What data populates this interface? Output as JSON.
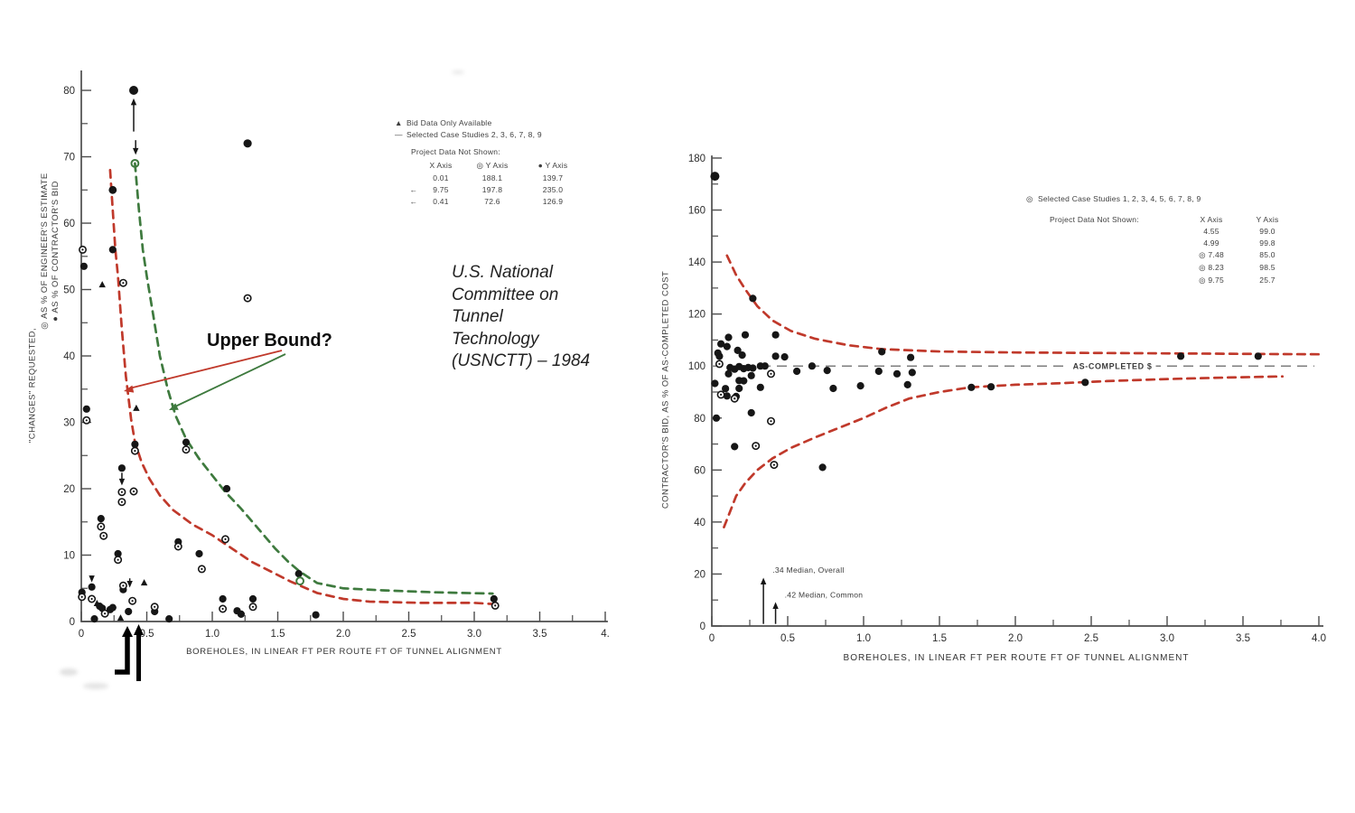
{
  "annotations": {
    "upper_bound_label": "Upper Bound?",
    "usnctt_lines": [
      "U.S. National",
      "Committee on",
      "Tunnel",
      "Technology",
      "(USNCTT) – 1984"
    ]
  },
  "palette": {
    "red": "#c0392b",
    "green": "#3e7a3e",
    "ink": "#161616",
    "gray_line": "#7d7d7d"
  },
  "chart_data": [
    {
      "id": "changes-requested-vs-boreholes",
      "type": "scatter",
      "xlabel": "BOREHOLES, IN LINEAR FT PER ROUTE FT OF TUNNEL ALIGNMENT",
      "ylabel1": "\"CHANGES\" REQUESTED,",
      "ylabel2_marker": "◎",
      "ylabel2": "AS % OF ENGINEER'S ESTIMATE",
      "ylabel3_marker": "●",
      "ylabel3": "AS % OF CONTRACTOR'S BID",
      "xlim": [
        0,
        4.02
      ],
      "ylim": [
        0,
        83
      ],
      "x_ticks": [
        0,
        0.5,
        1.0,
        1.5,
        2.0,
        2.5,
        3.0,
        3.5,
        4.0
      ],
      "x_tick_labels": [
        "0",
        "0.5",
        "1.0",
        "1.5",
        "2.0",
        "2.5",
        "3.0",
        "3.5",
        "4."
      ],
      "y_ticks": [
        0,
        10,
        20,
        30,
        40,
        50,
        60,
        70,
        80
      ],
      "y_tick_labels": [
        "0",
        "10",
        "20",
        "30",
        "40",
        "50",
        "60",
        "70",
        "80"
      ],
      "x_minor_step": 0.25,
      "y_minor_step": 5,
      "series": {
        "filled": [
          [
            0.4,
            80,
            5
          ],
          [
            1.27,
            72,
            4.6
          ],
          [
            0.24,
            65,
            4.4
          ],
          [
            0.24,
            56
          ],
          [
            0.02,
            53.5
          ],
          [
            0.04,
            32
          ],
          [
            0.41,
            26.7
          ],
          [
            0.8,
            27
          ],
          [
            0.31,
            23.1
          ],
          [
            1.11,
            20
          ],
          [
            0.15,
            15.5
          ],
          [
            0.28,
            10.2
          ],
          [
            0.74,
            12
          ],
          [
            0.9,
            10.2
          ],
          [
            1.66,
            7.2
          ],
          [
            3.15,
            3.4
          ],
          [
            1.08,
            3.4
          ],
          [
            1.31,
            3.4
          ],
          [
            1.79,
            1.0
          ],
          [
            1.19,
            1.6
          ],
          [
            1.22,
            1.1
          ],
          [
            0.005,
            4.4
          ],
          [
            0.08,
            5.2
          ],
          [
            0.14,
            2.3
          ],
          [
            0.16,
            2.0
          ],
          [
            0.22,
            1.8
          ],
          [
            0.24,
            2.1
          ],
          [
            0.32,
            4.8
          ],
          [
            0.36,
            1.5
          ],
          [
            0.56,
            1.5
          ],
          [
            0.67,
            0.4
          ],
          [
            0.1,
            0.4
          ]
        ],
        "open": [
          [
            0.01,
            56
          ],
          [
            0.32,
            51
          ],
          [
            1.27,
            48.7
          ],
          [
            0.04,
            30.3
          ],
          [
            0.41,
            25.7
          ],
          [
            0.8,
            25.9
          ],
          [
            0.31,
            19.5
          ],
          [
            0.31,
            18.0
          ],
          [
            0.4,
            19.6
          ],
          [
            0.15,
            14.3
          ],
          [
            0.17,
            12.9
          ],
          [
            0.28,
            9.3
          ],
          [
            0.74,
            11.3
          ],
          [
            0.92,
            7.9
          ],
          [
            1.1,
            12.4
          ],
          [
            1.08,
            1.9
          ],
          [
            1.31,
            2.2
          ],
          [
            3.16,
            2.4
          ],
          [
            0.005,
            3.7
          ],
          [
            0.08,
            3.4
          ],
          [
            0.18,
            1.2
          ],
          [
            0.32,
            5.4
          ],
          [
            0.39,
            3.1
          ],
          [
            0.56,
            2.2
          ]
        ],
        "green_open": [
          [
            0.41,
            69
          ],
          [
            1.67,
            6.1
          ]
        ],
        "triangle": [
          [
            0.16,
            50.7
          ],
          [
            0.42,
            32.1
          ],
          [
            0.12,
            2.7
          ],
          [
            0.48,
            5.8
          ],
          [
            0.3,
            0.5
          ]
        ]
      },
      "curves": [
        {
          "name": "upper-bound-red",
          "color": "#c0392b",
          "points": [
            [
              0.22,
              68
            ],
            [
              0.24,
              62
            ],
            [
              0.26,
              56
            ],
            [
              0.28,
              52
            ],
            [
              0.31,
              44
            ],
            [
              0.34,
              37
            ],
            [
              0.38,
              30.5
            ],
            [
              0.41,
              27
            ],
            [
              0.46,
              24
            ],
            [
              0.52,
              21.5
            ],
            [
              0.6,
              19
            ],
            [
              0.7,
              16.8
            ],
            [
              0.85,
              14.6
            ],
            [
              1.0,
              13
            ],
            [
              1.15,
              11
            ],
            [
              1.3,
              9
            ],
            [
              1.45,
              7.5
            ],
            [
              1.6,
              6
            ],
            [
              1.8,
              4.3
            ],
            [
              2.0,
              3.4
            ],
            [
              2.2,
              3.0
            ],
            [
              2.6,
              2.8
            ],
            [
              3.0,
              2.8
            ],
            [
              3.17,
              2.6
            ]
          ]
        },
        {
          "name": "upper-bound-green",
          "color": "#3e7a3e",
          "points": [
            [
              0.41,
              69
            ],
            [
              0.44,
              62
            ],
            [
              0.47,
              56
            ],
            [
              0.5,
              52
            ],
            [
              0.55,
              46
            ],
            [
              0.6,
              40
            ],
            [
              0.66,
              35
            ],
            [
              0.72,
              31
            ],
            [
              0.8,
              27.5
            ],
            [
              0.9,
              24.5
            ],
            [
              1.0,
              22
            ],
            [
              1.1,
              19.5
            ],
            [
              1.22,
              17
            ],
            [
              1.35,
              14
            ],
            [
              1.48,
              11
            ],
            [
              1.58,
              9
            ],
            [
              1.67,
              7.5
            ],
            [
              1.8,
              5.8
            ],
            [
              2.0,
              5.0
            ],
            [
              2.3,
              4.7
            ],
            [
              2.7,
              4.4
            ],
            [
              3.14,
              4.2
            ]
          ]
        }
      ],
      "arrows": [
        {
          "x": 0.4,
          "y1": 73.8,
          "y2": 78.8
        },
        {
          "x": 0.415,
          "y1": 72.5,
          "y2": 70.3
        },
        {
          "x": 0.31,
          "y1": 22.4,
          "y2": 20.5
        },
        {
          "x": 0.08,
          "y1": 6.9,
          "y2": 5.9
        },
        {
          "x": 0.37,
          "y1": 6.5,
          "y2": 5.1
        }
      ],
      "legend": {
        "line1_marker": "▲",
        "line1": "Bid Data Only Available",
        "line2_marker": "—",
        "line2": "Selected Case Studies 2, 3, 6, 7, 8, 9",
        "subtitle": "Project Data Not Shown:",
        "header": {
          "x": "X Axis",
          "y1_marker": "◎",
          "y1": "Y Axis",
          "y2_marker": "●",
          "y2": "Y Axis"
        },
        "rows": [
          {
            "pre": "",
            "x": "0.01",
            "y1": "188.1",
            "y2": "139.7"
          },
          {
            "pre": "←",
            "x": "9.75",
            "y1": "197.8",
            "y2": "235.0"
          },
          {
            "pre": "←",
            "x": "0.41",
            "y1": "72.6",
            "y2": "126.9"
          }
        ]
      }
    },
    {
      "id": "contractors-bid-vs-boreholes",
      "type": "scatter",
      "xlabel": "BOREHOLES, IN LINEAR FT PER ROUTE FT OF TUNNEL ALIGNMENT",
      "ylabel": "CONTRACTOR'S BID, AS % OF AS-COMPLETED COST",
      "xlim": [
        0,
        4.03
      ],
      "ylim": [
        0,
        181
      ],
      "x_ticks": [
        0,
        0.5,
        1.0,
        1.5,
        2.0,
        2.5,
        3.0,
        3.5,
        4.0
      ],
      "x_tick_labels": [
        "0",
        "0.5",
        "1.0",
        "1.5",
        "2.0",
        "2.5",
        "3.0",
        "3.5",
        "4.0"
      ],
      "y_ticks": [
        0,
        20,
        40,
        60,
        80,
        100,
        120,
        140,
        160,
        180
      ],
      "y_tick_labels": [
        "0",
        "20",
        "40",
        "60",
        "80",
        "100",
        "120",
        "140",
        "160",
        "180"
      ],
      "x_minor_step": 0.25,
      "y_minor_step": 10,
      "as_completed": {
        "y": 100,
        "x_end": 3.97,
        "label_x": 2.64,
        "label": "AS-COMPLETED $"
      },
      "series": {
        "filled": [
          [
            0.02,
            173,
            5
          ],
          [
            0.27,
            126
          ],
          [
            0.11,
            111
          ],
          [
            0.22,
            112
          ],
          [
            0.42,
            112
          ],
          [
            0.06,
            108.5
          ],
          [
            0.1,
            107.5
          ],
          [
            0.04,
            105
          ],
          [
            0.05,
            103.8
          ],
          [
            0.17,
            106
          ],
          [
            0.2,
            104.2
          ],
          [
            0.42,
            103.8
          ],
          [
            0.48,
            103.5
          ],
          [
            1.12,
            105.5
          ],
          [
            1.31,
            103.3
          ],
          [
            0.12,
            99.4
          ],
          [
            0.15,
            98.8
          ],
          [
            0.18,
            99.8
          ],
          [
            0.21,
            99.0
          ],
          [
            0.24,
            99.4
          ],
          [
            0.27,
            99.2
          ],
          [
            0.32,
            100.0
          ],
          [
            0.35,
            100.0
          ],
          [
            0.11,
            97.0
          ],
          [
            0.26,
            96.3
          ],
          [
            0.56,
            98.0
          ],
          [
            0.66,
            100.0
          ],
          [
            0.76,
            98.3
          ],
          [
            1.1,
            98.0
          ],
          [
            1.22,
            97.0
          ],
          [
            1.32,
            97.5
          ],
          [
            0.02,
            93.3
          ],
          [
            0.09,
            91.3
          ],
          [
            0.18,
            94.4
          ],
          [
            0.21,
            94.3
          ],
          [
            0.18,
            91.4
          ],
          [
            0.32,
            91.8
          ],
          [
            0.8,
            91.4
          ],
          [
            0.98,
            92.4
          ],
          [
            1.29,
            92.8
          ],
          [
            1.71,
            91.8
          ],
          [
            1.84,
            92.0
          ],
          [
            2.46,
            93.7
          ],
          [
            3.09,
            103.8
          ],
          [
            3.6,
            103.8
          ],
          [
            0.1,
            88.5
          ],
          [
            0.16,
            88.3
          ],
          [
            0.26,
            82.0
          ],
          [
            0.03,
            80.0
          ],
          [
            0.15,
            69.0
          ],
          [
            0.73,
            61.0
          ]
        ],
        "open": [
          [
            0.05,
            100.8
          ],
          [
            0.39,
            97.0
          ],
          [
            0.06,
            89.0
          ],
          [
            0.15,
            87.5
          ],
          [
            0.39,
            78.8
          ],
          [
            0.29,
            69.3
          ],
          [
            0.41,
            62.0
          ]
        ],
        "green_open": [],
        "triangle": []
      },
      "curves": [
        {
          "name": "upper-red-bound",
          "color": "#c0392b",
          "points": [
            [
              0.1,
              142.5
            ],
            [
              0.16,
              135
            ],
            [
              0.22,
              129.5
            ],
            [
              0.3,
              123
            ],
            [
              0.4,
              117.5
            ],
            [
              0.52,
              113.5
            ],
            [
              0.68,
              110.5
            ],
            [
              0.9,
              108
            ],
            [
              1.12,
              106.5
            ],
            [
              1.5,
              105.6
            ],
            [
              2.0,
              105.2
            ],
            [
              2.6,
              105.0
            ],
            [
              3.2,
              104.8
            ],
            [
              3.75,
              104.6
            ],
            [
              4.0,
              104.5
            ]
          ]
        },
        {
          "name": "lower-red-bound",
          "color": "#c0392b",
          "points": [
            [
              0.08,
              38
            ],
            [
              0.12,
              44
            ],
            [
              0.16,
              50
            ],
            [
              0.22,
              55
            ],
            [
              0.3,
              60
            ],
            [
              0.4,
              64.5
            ],
            [
              0.52,
              68.5
            ],
            [
              0.68,
              72.5
            ],
            [
              0.85,
              76.5
            ],
            [
              1.0,
              80
            ],
            [
              1.15,
              84
            ],
            [
              1.3,
              87.5
            ],
            [
              1.5,
              90
            ],
            [
              1.7,
              91.8
            ],
            [
              2.0,
              92.8
            ],
            [
              2.3,
              93.4
            ],
            [
              2.6,
              94.2
            ],
            [
              3.0,
              95.0
            ],
            [
              3.4,
              95.6
            ],
            [
              3.76,
              96.0
            ]
          ]
        }
      ],
      "arrows": [
        {
          "x": 0.34,
          "y1": 0.8,
          "y2": 18.6,
          "label": ".34 Median, Overall",
          "lx": 0.4,
          "ly": 20.5
        },
        {
          "x": 0.42,
          "y1": 0.8,
          "y2": 9.2,
          "label": ".42 Median, Common",
          "lx": 0.48,
          "ly": 11.0
        }
      ],
      "legend": {
        "line1_marker": "◎",
        "line1": "Selected Case Studies 1, 2, 3, 4, 5, 6, 7, 8, 9",
        "subtitle": "Project Data Not Shown:",
        "header": {
          "x": "X Axis",
          "y": "Y Axis"
        },
        "rows": [
          {
            "pre": "",
            "x": "4.55",
            "y": "99.0"
          },
          {
            "pre": "",
            "x": "4.99",
            "y": "99.8"
          },
          {
            "pre": "◎",
            "x": "7.48",
            "y": "85.0"
          },
          {
            "pre": "◎",
            "x": "8.23",
            "y": "98.5"
          },
          {
            "pre": "◎",
            "x": "9.75",
            "y": "25.7"
          }
        ]
      }
    }
  ]
}
